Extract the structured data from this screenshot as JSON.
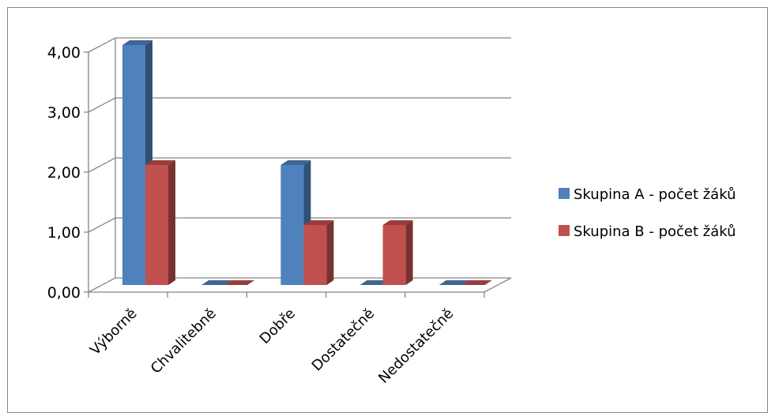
{
  "chart_data": {
    "type": "bar",
    "style": "3d-clustered-column",
    "categories": [
      "Výborně",
      "Chvalitebně",
      "Dobře",
      "Dostatečně",
      "Nedostatečně"
    ],
    "series": [
      {
        "name": "Skupina A - počet žáků",
        "values": [
          4,
          0,
          2,
          0,
          0
        ],
        "color": "#4f81bd"
      },
      {
        "name": "Skupina B - počet žáků",
        "values": [
          2,
          0,
          1,
          1,
          0
        ],
        "color": "#c0504d"
      }
    ],
    "ylim": [
      0,
      4
    ],
    "yticks": [
      "0,00",
      "1,00",
      "2,00",
      "3,00",
      "4,00"
    ],
    "grid": true,
    "legend": "right"
  },
  "colors": {
    "gridline": "#868686",
    "frame": "#868686"
  }
}
